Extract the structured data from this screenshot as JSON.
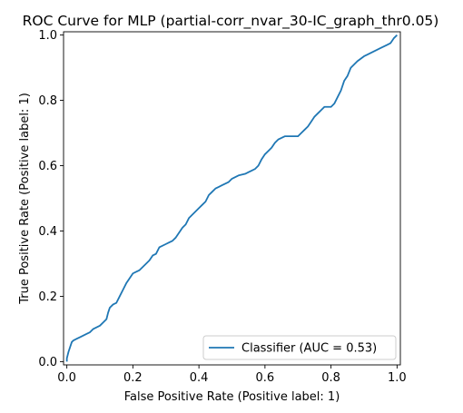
{
  "chart_data": {
    "type": "line",
    "title": "ROC Curve for MLP (partial-corr_nvar_30-IC_graph_thr0.05)",
    "xlabel": "False Positive Rate (Positive label: 1)",
    "ylabel": "True Positive Rate (Positive label: 1)",
    "xlim": [
      -0.01,
      1.01
    ],
    "ylim": [
      -0.01,
      1.01
    ],
    "xticks": [
      0.0,
      0.2,
      0.4,
      0.6,
      0.8,
      1.0
    ],
    "yticks": [
      0.0,
      0.2,
      0.4,
      0.6,
      0.8,
      1.0
    ],
    "xtick_labels": [
      "0.0",
      "0.2",
      "0.4",
      "0.6",
      "0.8",
      "1.0"
    ],
    "ytick_labels": [
      "0.0",
      "0.2",
      "0.4",
      "0.6",
      "0.8",
      "1.0"
    ],
    "grid": false,
    "legend_position": "lower-right",
    "series": [
      {
        "name": "Classifier (AUC = 0.53)",
        "color": "#1f77b4",
        "x": [
          0.0,
          0.0,
          0.005,
          0.01,
          0.015,
          0.02,
          0.03,
          0.04,
          0.06,
          0.07,
          0.08,
          0.1,
          0.11,
          0.12,
          0.125,
          0.13,
          0.14,
          0.15,
          0.16,
          0.17,
          0.18,
          0.19,
          0.2,
          0.21,
          0.22,
          0.24,
          0.25,
          0.26,
          0.27,
          0.28,
          0.3,
          0.31,
          0.32,
          0.33,
          0.34,
          0.35,
          0.36,
          0.37,
          0.38,
          0.39,
          0.4,
          0.41,
          0.42,
          0.43,
          0.44,
          0.45,
          0.46,
          0.47,
          0.48,
          0.49,
          0.5,
          0.52,
          0.54,
          0.55,
          0.56,
          0.57,
          0.58,
          0.59,
          0.6,
          0.61,
          0.62,
          0.63,
          0.64,
          0.65,
          0.66,
          0.7,
          0.71,
          0.72,
          0.73,
          0.74,
          0.75,
          0.76,
          0.77,
          0.78,
          0.8,
          0.81,
          0.82,
          0.83,
          0.84,
          0.85,
          0.86,
          0.87,
          0.88,
          0.9,
          0.91,
          0.93,
          0.95,
          0.97,
          0.98,
          0.99,
          1.0
        ],
        "y": [
          0.0,
          0.01,
          0.03,
          0.045,
          0.06,
          0.065,
          0.07,
          0.075,
          0.085,
          0.09,
          0.1,
          0.11,
          0.12,
          0.13,
          0.15,
          0.165,
          0.175,
          0.18,
          0.2,
          0.22,
          0.24,
          0.255,
          0.27,
          0.275,
          0.28,
          0.3,
          0.31,
          0.325,
          0.33,
          0.35,
          0.36,
          0.365,
          0.37,
          0.38,
          0.395,
          0.41,
          0.42,
          0.44,
          0.45,
          0.46,
          0.47,
          0.48,
          0.49,
          0.51,
          0.52,
          0.53,
          0.535,
          0.54,
          0.545,
          0.55,
          0.56,
          0.57,
          0.575,
          0.58,
          0.585,
          0.59,
          0.6,
          0.62,
          0.635,
          0.645,
          0.655,
          0.67,
          0.68,
          0.685,
          0.69,
          0.69,
          0.7,
          0.71,
          0.72,
          0.735,
          0.75,
          0.76,
          0.77,
          0.78,
          0.78,
          0.79,
          0.81,
          0.83,
          0.86,
          0.875,
          0.9,
          0.91,
          0.92,
          0.935,
          0.94,
          0.95,
          0.96,
          0.97,
          0.975,
          0.99,
          1.0
        ]
      }
    ]
  }
}
